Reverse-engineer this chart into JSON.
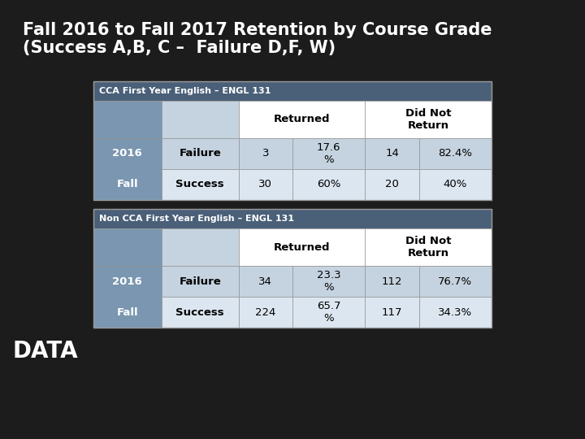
{
  "title_line1": "Fall 2016 to Fall 2017 Retention by Course Grade",
  "title_line2": "(Success A,B, C –  Failure D,F, W)",
  "background_color": "#1c1c1c",
  "title_color": "#ffffff",
  "data_label": "DATA",
  "table1_header": "CCA First Year English – ENGL 131",
  "table2_header": "Non CCA First Year English – ENGL 131",
  "table_header_bg": "#4a5f78",
  "table_header_text": "#ffffff",
  "row_label_bg": "#7a96b0",
  "cell_bg_row0": "#c5d3e0",
  "cell_bg_row1": "#dce6f0",
  "cell_text": "#000000",
  "border_color": "#999999",
  "table1_rows": [
    [
      "Failure",
      "3",
      "17.6\n%",
      "14",
      "82.4%"
    ],
    [
      "Success",
      "30",
      "60%",
      "20",
      "40%"
    ]
  ],
  "table2_rows": [
    [
      "Failure",
      "34",
      "23.3\n%",
      "112",
      "76.7%"
    ],
    [
      "Success",
      "224",
      "65.7\n%",
      "117",
      "34.3%"
    ]
  ]
}
